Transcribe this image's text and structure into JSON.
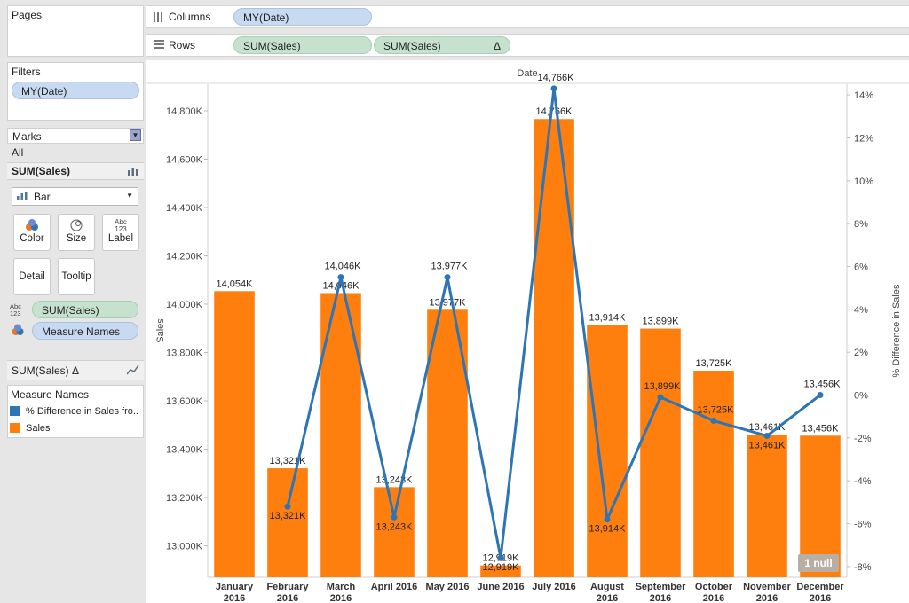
{
  "colors": {
    "orange": "#ff7f0e",
    "blue": "#2e75b6",
    "pill_blue": "#c8daf1",
    "pill_green": "#c6e2cf"
  },
  "left": {
    "pages_title": "Pages",
    "filters_title": "Filters",
    "filter_pill": "MY(Date)",
    "marks_title": "Marks",
    "marks_all": "All",
    "sum_sales_header": "SUM(Sales)",
    "mark_type": "Bar",
    "buttons": {
      "color": "Color",
      "size": "Size",
      "label": "Label",
      "detail": "Detail",
      "tooltip": "Tooltip"
    },
    "label_icon_text": "Abc 123",
    "pill_sum_sales": "SUM(Sales)",
    "pill_measure_names": "Measure Names",
    "sum_sales_delta": "SUM(Sales) Δ",
    "legend_title": "Measure Names",
    "legend_items": [
      {
        "label": "% Difference in Sales fro..",
        "color": "#2e75b6"
      },
      {
        "label": "Sales",
        "color": "#ff7f0e"
      }
    ]
  },
  "shelves": {
    "columns_label": "Columns",
    "columns_pill": "MY(Date)",
    "rows_label": "Rows",
    "rows_pills": [
      "SUM(Sales)",
      "SUM(Sales)"
    ],
    "delta_symbol": "Δ"
  },
  "null_badge": "1 null",
  "chart_data": {
    "type": "bar",
    "title": "Date",
    "xlabel": "",
    "ylabel": "Sales",
    "y2label": "% Difference in Sales",
    "ylim": [
      12870,
      14910
    ],
    "y2lim": [
      -8.5,
      14.5
    ],
    "categories": [
      "January 2016",
      "February 2016",
      "March 2016",
      "April 2016",
      "May 2016",
      "June 2016",
      "July 2016",
      "August 2016",
      "September 2016",
      "October 2016",
      "November 2016",
      "December 2016"
    ],
    "yticks": [
      13000,
      13200,
      13400,
      13600,
      13800,
      14000,
      14200,
      14400,
      14600,
      14800
    ],
    "ytick_labels": [
      "13,000K",
      "13,200K",
      "13,400K",
      "13,600K",
      "13,800K",
      "14,000K",
      "14,200K",
      "14,400K",
      "14,600K",
      "14,800K"
    ],
    "y2ticks": [
      -8,
      -6,
      -4,
      -2,
      0,
      2,
      4,
      6,
      8,
      10,
      12,
      14
    ],
    "y2tick_labels": [
      "-8%",
      "-6%",
      "-4%",
      "-2%",
      "0%",
      "2%",
      "4%",
      "6%",
      "8%",
      "10%",
      "12%",
      "14%"
    ],
    "series": [
      {
        "name": "Sales",
        "kind": "bar",
        "values": [
          14054,
          13321,
          14046,
          13243,
          13977,
          12919,
          14766,
          13914,
          13899,
          13725,
          13461,
          13456
        ],
        "labels": [
          "14,054K",
          "13,321K",
          "14,046K",
          "13,243K",
          "13,977K",
          "12,919K",
          "14,766K",
          "13,914K",
          "13,899K",
          "13,725K",
          "13,461K",
          "13,456K"
        ]
      },
      {
        "name": "% Difference in Sales",
        "kind": "line",
        "values": [
          null,
          -5.2,
          5.5,
          -5.7,
          5.5,
          -7.6,
          14.3,
          -5.8,
          -0.1,
          -1.2,
          -1.9,
          -0.0
        ],
        "labels": [
          "",
          "13,321K",
          "14,046K",
          "13,243K",
          "13,977K",
          "12,919K",
          "14,766K",
          "13,914K",
          "13,899K",
          "13,725K",
          "13,461K",
          "13,456K"
        ]
      }
    ]
  }
}
